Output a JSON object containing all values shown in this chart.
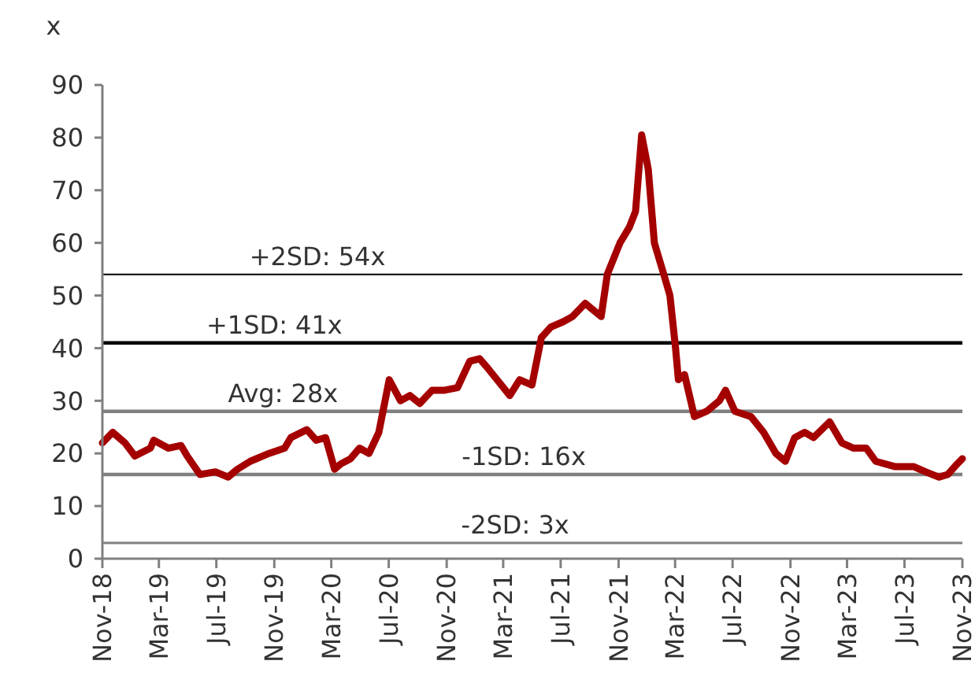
{
  "chart_data": {
    "type": "line",
    "ylabel": "x",
    "xlim": [
      "2018-11-01",
      "2023-11-01"
    ],
    "xticks": [
      {
        "value": "2018-11",
        "label": "Nov-18"
      },
      {
        "value": "2019-03",
        "label": "Mar-19"
      },
      {
        "value": "2019-07",
        "label": "Jul-19"
      },
      {
        "value": "2019-11",
        "label": "Nov-19"
      },
      {
        "value": "2020-03",
        "label": "Mar-20"
      },
      {
        "value": "2020-07",
        "label": "Jul-20"
      },
      {
        "value": "2020-11",
        "label": "Nov-20"
      },
      {
        "value": "2021-03",
        "label": "Mar-21"
      },
      {
        "value": "2021-07",
        "label": "Jul-21"
      },
      {
        "value": "2021-11",
        "label": "Nov-21"
      },
      {
        "value": "2022-03",
        "label": "Mar-22"
      },
      {
        "value": "2022-07",
        "label": "Jul-22"
      },
      {
        "value": "2022-11",
        "label": "Nov-22"
      },
      {
        "value": "2023-03",
        "label": "Mar-23"
      },
      {
        "value": "2023-07",
        "label": "Jul-23"
      },
      {
        "value": "2023-11",
        "label": "Nov-23"
      }
    ],
    "ylim": [
      0,
      90
    ],
    "yticks": [
      0,
      10,
      20,
      30,
      40,
      50,
      60,
      70,
      80,
      90
    ],
    "grid": false,
    "marker": "none",
    "line_style": "solid",
    "x": [
      "2018-11-01",
      "2018-11-23",
      "2018-12-19",
      "2019-01-09",
      "2019-02-11",
      "2019-02-18",
      "2019-03-21",
      "2019-04-17",
      "2019-04-30",
      "2019-05-27",
      "2019-06-29",
      "2019-07-26",
      "2019-08-15",
      "2019-09-11",
      "2019-10-21",
      "2019-11-23",
      "2019-12-06",
      "2020-01-09",
      "2020-01-29",
      "2020-02-18",
      "2020-03-08",
      "2020-03-21",
      "2020-04-11",
      "2020-04-30",
      "2020-05-20",
      "2020-06-10",
      "2020-07-02",
      "2020-07-26",
      "2020-08-15",
      "2020-09-05",
      "2020-10-01",
      "2020-10-28",
      "2020-11-24",
      "2020-12-20",
      "2021-01-10",
      "2021-01-29",
      "2021-02-25",
      "2021-03-15",
      "2021-04-05",
      "2021-05-01",
      "2021-05-21",
      "2021-06-10",
      "2021-07-06",
      "2021-07-26",
      "2021-08-22",
      "2021-09-25",
      "2021-10-08",
      "2021-11-04",
      "2021-11-24",
      "2021-12-07",
      "2021-12-20",
      "2022-01-03",
      "2022-01-16",
      "2022-02-05",
      "2022-02-18",
      "2022-03-02",
      "2022-03-08",
      "2022-03-21",
      "2022-04-11",
      "2022-05-07",
      "2022-06-03",
      "2022-06-16",
      "2022-07-06",
      "2022-08-09",
      "2022-09-05",
      "2022-10-01",
      "2022-10-21",
      "2022-11-10",
      "2022-12-01",
      "2022-12-20",
      "2023-01-23",
      "2023-02-18",
      "2023-03-15",
      "2023-04-11",
      "2023-05-01",
      "2023-06-10",
      "2023-07-20",
      "2023-08-15",
      "2023-09-12",
      "2023-10-01",
      "2023-10-21",
      "2023-11-01"
    ],
    "series": [
      {
        "color": "#a50000",
        "values": [
          22,
          24,
          22,
          19.5,
          21,
          22.5,
          21,
          21.5,
          19.5,
          16,
          16.5,
          15.5,
          17,
          18.5,
          20,
          21,
          23,
          24.5,
          22.5,
          23,
          17,
          18,
          19,
          21,
          20,
          24,
          34,
          30,
          31,
          29.5,
          32,
          32,
          32.5,
          37.5,
          38,
          36,
          33,
          31,
          34,
          33,
          42,
          44,
          45,
          46,
          48.5,
          46,
          54,
          60,
          63,
          66,
          80.5,
          74,
          60,
          54,
          50,
          40,
          34,
          35,
          27,
          28,
          30,
          32,
          28,
          27,
          24,
          20,
          18.5,
          23,
          24,
          23,
          26,
          22,
          21,
          21,
          18.5,
          17.5,
          17.5,
          16.5,
          15.5,
          16,
          18,
          19
        ]
      }
    ],
    "ref_lines": [
      {
        "axis": "y",
        "value": 54,
        "label": "+2SD: 54x",
        "color": "#000000"
      },
      {
        "axis": "y",
        "value": 41,
        "label": "+1SD: 41x",
        "color": "#000000"
      },
      {
        "axis": "y",
        "value": 28,
        "label": "Avg: 28x",
        "color": "#808080"
      },
      {
        "axis": "y",
        "value": 16,
        "label": "-1SD: 16x",
        "color": "#808080"
      },
      {
        "axis": "y",
        "value": 3,
        "label": "-2SD: 3x",
        "color": "#808080"
      }
    ]
  }
}
